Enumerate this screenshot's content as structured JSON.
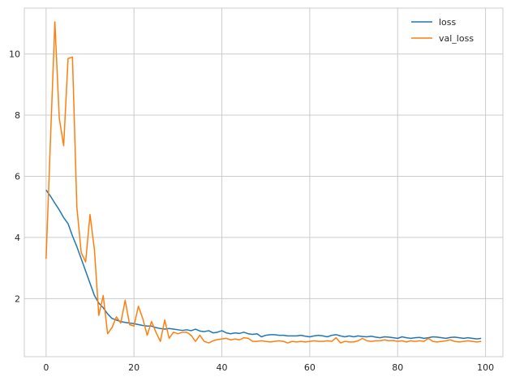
{
  "chart_data": {
    "type": "line",
    "title": "",
    "xlabel": "",
    "ylabel": "",
    "xlim": [
      -4.95,
      103.95
    ],
    "ylim": [
      0.1,
      11.5
    ],
    "xticks": [
      0,
      20,
      40,
      60,
      80,
      100
    ],
    "yticks": [
      2,
      4,
      6,
      8,
      10
    ],
    "grid": true,
    "legend_position": "top-right",
    "series": [
      {
        "name": "loss",
        "color": "#1f77b4",
        "points": [
          [
            0,
            5.55
          ],
          [
            1,
            5.35
          ],
          [
            2,
            5.12
          ],
          [
            3,
            4.9
          ],
          [
            4,
            4.65
          ],
          [
            5,
            4.45
          ],
          [
            6,
            4.05
          ],
          [
            7,
            3.7
          ],
          [
            8,
            3.3
          ],
          [
            9,
            2.9
          ],
          [
            10,
            2.5
          ],
          [
            11,
            2.1
          ],
          [
            12,
            1.85
          ],
          [
            13,
            1.7
          ],
          [
            14,
            1.5
          ],
          [
            15,
            1.35
          ],
          [
            16,
            1.3
          ],
          [
            17,
            1.25
          ],
          [
            18,
            1.22
          ],
          [
            19,
            1.2
          ],
          [
            20,
            1.18
          ],
          [
            21,
            1.15
          ],
          [
            22,
            1.12
          ],
          [
            23,
            1.1
          ],
          [
            24,
            1.1
          ],
          [
            25,
            1.05
          ],
          [
            26,
            1.02
          ],
          [
            27,
            1.0
          ],
          [
            28,
            1.02
          ],
          [
            29,
            1.0
          ],
          [
            30,
            0.98
          ],
          [
            31,
            0.96
          ],
          [
            32,
            0.98
          ],
          [
            33,
            0.95
          ],
          [
            34,
            1.0
          ],
          [
            35,
            0.94
          ],
          [
            36,
            0.92
          ],
          [
            37,
            0.95
          ],
          [
            38,
            0.88
          ],
          [
            39,
            0.9
          ],
          [
            40,
            0.95
          ],
          [
            41,
            0.88
          ],
          [
            42,
            0.85
          ],
          [
            43,
            0.88
          ],
          [
            44,
            0.86
          ],
          [
            45,
            0.9
          ],
          [
            46,
            0.85
          ],
          [
            47,
            0.83
          ],
          [
            48,
            0.85
          ],
          [
            49,
            0.75
          ],
          [
            50,
            0.8
          ],
          [
            51,
            0.82
          ],
          [
            52,
            0.82
          ],
          [
            53,
            0.8
          ],
          [
            54,
            0.8
          ],
          [
            55,
            0.78
          ],
          [
            56,
            0.78
          ],
          [
            57,
            0.78
          ],
          [
            58,
            0.8
          ],
          [
            59,
            0.77
          ],
          [
            60,
            0.75
          ],
          [
            61,
            0.78
          ],
          [
            62,
            0.8
          ],
          [
            63,
            0.78
          ],
          [
            64,
            0.75
          ],
          [
            65,
            0.8
          ],
          [
            66,
            0.82
          ],
          [
            67,
            0.78
          ],
          [
            68,
            0.75
          ],
          [
            69,
            0.78
          ],
          [
            70,
            0.75
          ],
          [
            71,
            0.78
          ],
          [
            72,
            0.76
          ],
          [
            73,
            0.75
          ],
          [
            74,
            0.77
          ],
          [
            75,
            0.74
          ],
          [
            76,
            0.72
          ],
          [
            77,
            0.75
          ],
          [
            78,
            0.74
          ],
          [
            79,
            0.72
          ],
          [
            80,
            0.7
          ],
          [
            81,
            0.75
          ],
          [
            82,
            0.72
          ],
          [
            83,
            0.7
          ],
          [
            84,
            0.72
          ],
          [
            85,
            0.73
          ],
          [
            86,
            0.7
          ],
          [
            87,
            0.72
          ],
          [
            88,
            0.75
          ],
          [
            89,
            0.74
          ],
          [
            90,
            0.72
          ],
          [
            91,
            0.7
          ],
          [
            92,
            0.73
          ],
          [
            93,
            0.74
          ],
          [
            94,
            0.72
          ],
          [
            95,
            0.7
          ],
          [
            96,
            0.72
          ],
          [
            97,
            0.7
          ],
          [
            98,
            0.68
          ],
          [
            99,
            0.7
          ]
        ]
      },
      {
        "name": "val_loss",
        "color": "#ff7f0e",
        "points": [
          [
            0,
            3.3
          ],
          [
            1,
            7.2
          ],
          [
            2,
            11.05
          ],
          [
            3,
            7.9
          ],
          [
            4,
            7.0
          ],
          [
            5,
            9.85
          ],
          [
            6,
            9.9
          ],
          [
            7,
            5.0
          ],
          [
            8,
            3.5
          ],
          [
            9,
            3.2
          ],
          [
            10,
            4.75
          ],
          [
            11,
            3.6
          ],
          [
            12,
            1.45
          ],
          [
            13,
            2.1
          ],
          [
            14,
            0.85
          ],
          [
            15,
            1.05
          ],
          [
            16,
            1.4
          ],
          [
            17,
            1.2
          ],
          [
            18,
            1.95
          ],
          [
            19,
            1.15
          ],
          [
            20,
            1.1
          ],
          [
            21,
            1.75
          ],
          [
            22,
            1.35
          ],
          [
            23,
            0.8
          ],
          [
            24,
            1.25
          ],
          [
            25,
            0.9
          ],
          [
            26,
            0.6
          ],
          [
            27,
            1.3
          ],
          [
            28,
            0.7
          ],
          [
            29,
            0.9
          ],
          [
            30,
            0.85
          ],
          [
            31,
            0.9
          ],
          [
            32,
            0.9
          ],
          [
            33,
            0.8
          ],
          [
            34,
            0.6
          ],
          [
            35,
            0.8
          ],
          [
            36,
            0.6
          ],
          [
            37,
            0.55
          ],
          [
            38,
            0.62
          ],
          [
            39,
            0.66
          ],
          [
            40,
            0.68
          ],
          [
            41,
            0.7
          ],
          [
            42,
            0.65
          ],
          [
            43,
            0.68
          ],
          [
            44,
            0.65
          ],
          [
            45,
            0.72
          ],
          [
            46,
            0.7
          ],
          [
            47,
            0.6
          ],
          [
            48,
            0.6
          ],
          [
            49,
            0.62
          ],
          [
            50,
            0.6
          ],
          [
            51,
            0.58
          ],
          [
            52,
            0.6
          ],
          [
            53,
            0.62
          ],
          [
            54,
            0.6
          ],
          [
            55,
            0.55
          ],
          [
            56,
            0.6
          ],
          [
            57,
            0.58
          ],
          [
            58,
            0.6
          ],
          [
            59,
            0.58
          ],
          [
            60,
            0.6
          ],
          [
            61,
            0.62
          ],
          [
            62,
            0.6
          ],
          [
            63,
            0.6
          ],
          [
            64,
            0.62
          ],
          [
            65,
            0.6
          ],
          [
            66,
            0.72
          ],
          [
            67,
            0.55
          ],
          [
            68,
            0.6
          ],
          [
            69,
            0.58
          ],
          [
            70,
            0.58
          ],
          [
            71,
            0.62
          ],
          [
            72,
            0.7
          ],
          [
            73,
            0.62
          ],
          [
            74,
            0.6
          ],
          [
            75,
            0.62
          ],
          [
            76,
            0.62
          ],
          [
            77,
            0.65
          ],
          [
            78,
            0.62
          ],
          [
            79,
            0.63
          ],
          [
            80,
            0.6
          ],
          [
            81,
            0.62
          ],
          [
            82,
            0.58
          ],
          [
            83,
            0.62
          ],
          [
            84,
            0.6
          ],
          [
            85,
            0.62
          ],
          [
            86,
            0.6
          ],
          [
            87,
            0.7
          ],
          [
            88,
            0.6
          ],
          [
            89,
            0.58
          ],
          [
            90,
            0.6
          ],
          [
            91,
            0.62
          ],
          [
            92,
            0.65
          ],
          [
            93,
            0.6
          ],
          [
            94,
            0.58
          ],
          [
            95,
            0.6
          ],
          [
            96,
            0.62
          ],
          [
            97,
            0.6
          ],
          [
            98,
            0.58
          ],
          [
            99,
            0.6
          ]
        ]
      }
    ]
  }
}
